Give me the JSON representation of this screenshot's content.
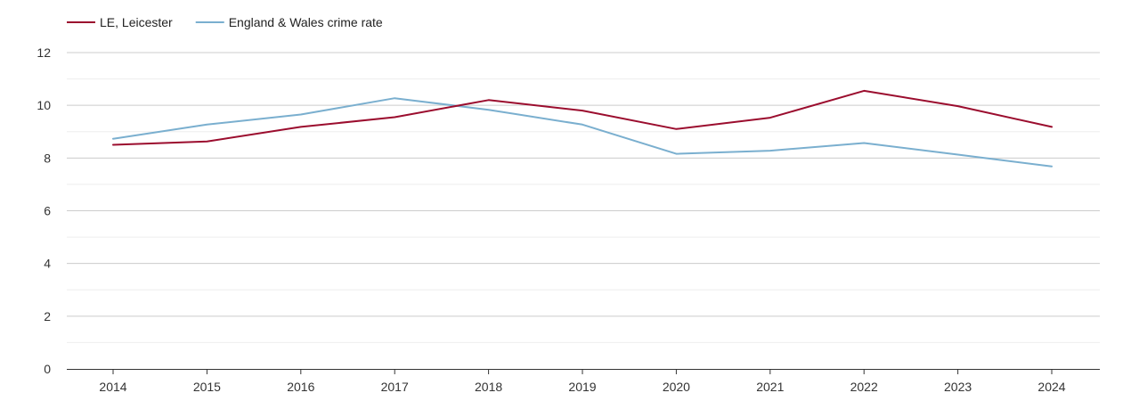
{
  "chart_data": {
    "type": "line",
    "x": [
      "2014",
      "2015",
      "2016",
      "2017",
      "2018",
      "2019",
      "2020",
      "2021",
      "2022",
      "2023",
      "2024"
    ],
    "series": [
      {
        "name": "LE, Leicester",
        "color": "#9b0d2e",
        "values": [
          8.5,
          8.63,
          9.18,
          9.55,
          10.2,
          9.8,
          9.1,
          9.53,
          10.55,
          9.97,
          9.18
        ]
      },
      {
        "name": "England & Wales crime rate",
        "color": "#7aafcf",
        "values": [
          8.73,
          9.27,
          9.65,
          10.27,
          9.83,
          9.27,
          8.16,
          8.28,
          8.57,
          8.13,
          7.68
        ]
      }
    ],
    "y_ticks": [
      "0",
      "2",
      "4",
      "6",
      "8",
      "10",
      "12"
    ],
    "ylim": [
      0,
      12
    ],
    "grid": true,
    "legend_position": "top-left"
  }
}
